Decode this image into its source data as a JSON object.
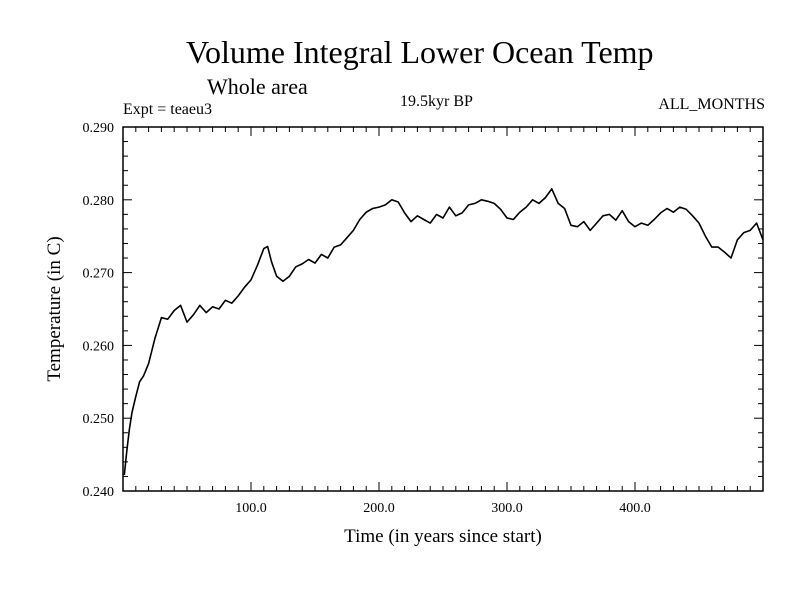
{
  "header": {
    "title": "Volume Integral Lower Ocean Temp",
    "subtitle": "Whole area",
    "experiment": "Expt = teaeu3",
    "period": "19.5kyr BP",
    "months": "ALL_MONTHS"
  },
  "chart_data": {
    "type": "line",
    "title": "Volume Integral Lower Ocean Temp",
    "xlabel": "Time (in years since start)",
    "ylabel": "Temperature (in C)",
    "xlim": [
      0,
      500
    ],
    "ylim": [
      0.24,
      0.29
    ],
    "x_ticks": [
      100,
      200,
      300,
      400
    ],
    "x_tick_labels": [
      "100.0",
      "200.0",
      "300.0",
      "400.0"
    ],
    "y_ticks": [
      0.24,
      0.25,
      0.26,
      0.27,
      0.28,
      0.29
    ],
    "y_tick_labels": [
      "0.240",
      "0.250",
      "0.260",
      "0.270",
      "0.280",
      "0.290"
    ],
    "grid": false,
    "series": [
      {
        "name": "Lower Ocean Temp",
        "color": "#000000",
        "x": [
          1,
          3,
          5,
          7,
          10,
          13,
          16,
          20,
          25,
          30,
          35,
          40,
          45,
          50,
          55,
          60,
          65,
          70,
          75,
          80,
          85,
          90,
          95,
          100,
          105,
          110,
          113,
          116,
          120,
          125,
          130,
          135,
          140,
          145,
          150,
          155,
          160,
          165,
          170,
          175,
          180,
          185,
          190,
          195,
          200,
          205,
          210,
          215,
          220,
          225,
          230,
          235,
          240,
          245,
          250,
          255,
          260,
          265,
          270,
          275,
          280,
          285,
          290,
          295,
          300,
          305,
          310,
          315,
          320,
          325,
          330,
          335,
          340,
          345,
          350,
          355,
          360,
          365,
          370,
          375,
          380,
          385,
          390,
          395,
          400,
          405,
          410,
          415,
          420,
          425,
          430,
          435,
          440,
          445,
          450,
          455,
          460,
          465,
          470,
          475,
          480,
          485,
          490,
          495,
          500
        ],
        "values": [
          0.2422,
          0.2455,
          0.2485,
          0.2508,
          0.253,
          0.255,
          0.2558,
          0.2575,
          0.261,
          0.2638,
          0.2636,
          0.2648,
          0.2655,
          0.2632,
          0.2642,
          0.2655,
          0.2645,
          0.2653,
          0.265,
          0.2662,
          0.2658,
          0.2668,
          0.268,
          0.269,
          0.271,
          0.2733,
          0.2736,
          0.2715,
          0.2695,
          0.2688,
          0.2695,
          0.2708,
          0.2712,
          0.2718,
          0.2713,
          0.2725,
          0.272,
          0.2735,
          0.2738,
          0.2748,
          0.2758,
          0.2773,
          0.2783,
          0.2788,
          0.279,
          0.2793,
          0.28,
          0.2797,
          0.2782,
          0.277,
          0.2778,
          0.2773,
          0.2768,
          0.278,
          0.2775,
          0.279,
          0.2778,
          0.2782,
          0.2793,
          0.2795,
          0.28,
          0.2798,
          0.2795,
          0.2787,
          0.2775,
          0.2773,
          0.2783,
          0.279,
          0.28,
          0.2795,
          0.2803,
          0.2815,
          0.2795,
          0.2788,
          0.2765,
          0.2763,
          0.277,
          0.2758,
          0.2768,
          0.2778,
          0.278,
          0.2772,
          0.2785,
          0.277,
          0.2763,
          0.2768,
          0.2765,
          0.2773,
          0.2782,
          0.2788,
          0.2783,
          0.279,
          0.2787,
          0.2778,
          0.2768,
          0.275,
          0.2735,
          0.2735,
          0.2728,
          0.272,
          0.2745,
          0.2755,
          0.2758,
          0.2768,
          0.2745
        ]
      }
    ]
  }
}
